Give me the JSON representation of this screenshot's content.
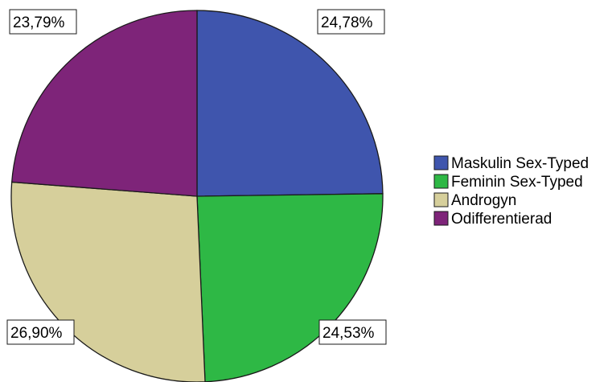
{
  "chart_data": {
    "type": "pie",
    "title": "",
    "series": [
      {
        "name": "Maskulin Sex-Typed",
        "value": 24.78,
        "label": "24,78%",
        "color": "#3f55ad"
      },
      {
        "name": "Feminin Sex-Typed",
        "value": 24.53,
        "label": "24,53%",
        "color": "#2eb845"
      },
      {
        "name": "Androgyn",
        "value": 26.9,
        "label": "26,90%",
        "color": "#d6cf9b"
      },
      {
        "name": "Odifferentierad",
        "value": 23.79,
        "label": "23,79%",
        "color": "#7e2479"
      }
    ],
    "start": "12 o'clock",
    "direction": "clockwise",
    "legend_position": "right"
  }
}
